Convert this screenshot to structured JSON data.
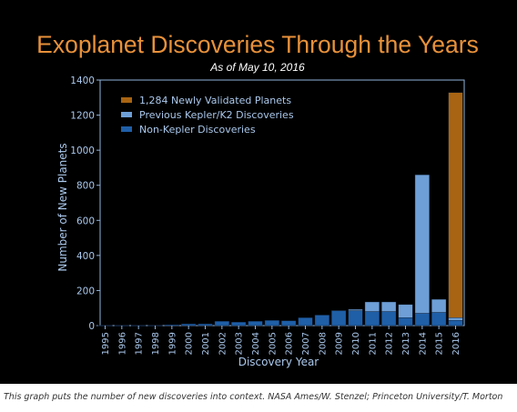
{
  "chart_data": {
    "type": "bar",
    "title": "Exoplanet Discoveries Through the Years",
    "subtitle": "As of May 10, 2016",
    "xlabel": "Discovery Year",
    "ylabel": "Number of New Planets",
    "ylim": [
      0,
      1400
    ],
    "yticks": [
      0,
      200,
      400,
      600,
      800,
      1000,
      1200,
      1400
    ],
    "stacked": true,
    "legend_position": "top-left",
    "grid": false,
    "categories": [
      "1995",
      "1996",
      "1997",
      "1998",
      "1999",
      "2000",
      "2001",
      "2002",
      "2003",
      "2004",
      "2005",
      "2006",
      "2007",
      "2008",
      "2009",
      "2010",
      "2011",
      "2012",
      "2013",
      "2014",
      "2015",
      "2016"
    ],
    "series": [
      {
        "name": "Non-Kepler Discoveries",
        "color": "#1f5fa8",
        "values": [
          1,
          1,
          1,
          1,
          5,
          10,
          10,
          25,
          20,
          25,
          30,
          28,
          45,
          60,
          85,
          85,
          80,
          80,
          45,
          70,
          75,
          30
        ]
      },
      {
        "name": "Previous Kepler/K2 Discoveries",
        "color": "#6e9fd6",
        "values": [
          0,
          0,
          0,
          0,
          0,
          0,
          0,
          0,
          0,
          0,
          0,
          0,
          0,
          0,
          2,
          8,
          55,
          55,
          75,
          790,
          75,
          15
        ]
      },
      {
        "name": "1,284 Newly Validated Planets",
        "color": "#a86412",
        "values": [
          0,
          0,
          0,
          0,
          0,
          0,
          0,
          0,
          0,
          0,
          0,
          0,
          0,
          0,
          0,
          0,
          0,
          0,
          0,
          0,
          0,
          1284
        ]
      }
    ],
    "legend_order": [
      "1,284 Newly Validated Planets",
      "Previous Kepler/K2 Discoveries",
      "Non-Kepler Discoveries"
    ]
  },
  "colors": {
    "background": "#000000",
    "title": "#e8913a",
    "text": "#ffffff",
    "axis_text": "#aac8ec",
    "axis_line": "#8fb3dd"
  },
  "caption": "This graph puts the number of new discoveries into context. NASA Ames/W. Stenzel; Princeton University/T. Morton"
}
